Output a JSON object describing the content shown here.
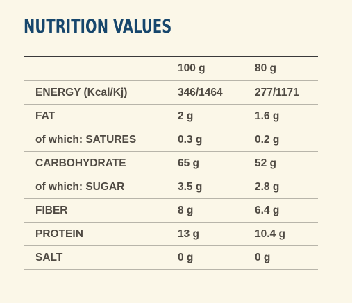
{
  "title": "NUTRITION VALUES",
  "columns": {
    "nutrient": "",
    "per_100g": "100 g",
    "per_80g": "80 g"
  },
  "rows": [
    {
      "nutrient": "ENERGY (Kcal/Kj)",
      "per_100g": "346/1464",
      "per_80g": "277/1171"
    },
    {
      "nutrient": "FAT",
      "per_100g": "2 g",
      "per_80g": "1.6 g"
    },
    {
      "nutrient": "of which: SATURES",
      "per_100g": "0.3 g",
      "per_80g": "0.2 g"
    },
    {
      "nutrient": "CARBOHYDRATE",
      "per_100g": "65 g",
      "per_80g": "52 g"
    },
    {
      "nutrient": "of which: SUGAR",
      "per_100g": "3.5 g",
      "per_80g": "2.8 g"
    },
    {
      "nutrient": "FIBER",
      "per_100g": "8 g",
      "per_80g": "6.4 g"
    },
    {
      "nutrient": "PROTEIN",
      "per_100g": "13 g",
      "per_80g": "10.4 g"
    },
    {
      "nutrient": "SALT",
      "per_100g": "0 g",
      "per_80g": "0 g"
    }
  ],
  "colors": {
    "background": "#fbf7e8",
    "title": "#16466c",
    "text": "#4f4a43"
  }
}
